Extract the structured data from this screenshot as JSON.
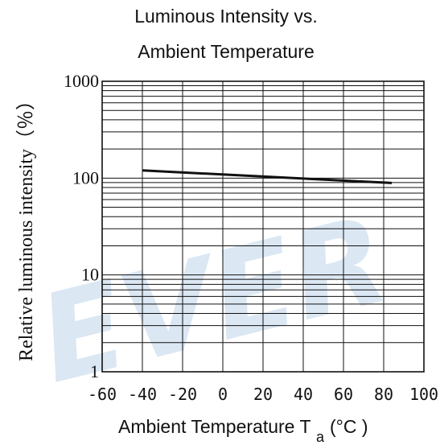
{
  "chart_data": {
    "type": "line",
    "title_lines": [
      "Luminous Intensity vs.",
      "Ambient Temperature"
    ],
    "xlabel": "Ambient Temperature T",
    "xlabel_sub": "a",
    "xlabel_unit": "(°C )",
    "ylabel": "Relative luminous intensity（％）",
    "xlim": [
      -60,
      100
    ],
    "ylim": [
      1,
      1000
    ],
    "y_scale": "log",
    "x_ticks": [
      "-60",
      "-40",
      "-20",
      "0",
      "20",
      "40",
      "60",
      "80",
      "100"
    ],
    "y_ticks": [
      "1000",
      "100",
      "10",
      "1"
    ],
    "grid": true,
    "watermark": "EVER",
    "series": [
      {
        "x": [
          -40,
          84
        ],
        "y": [
          120,
          89
        ]
      }
    ],
    "colors": {
      "line": "#111111",
      "watermark": "#dbe7f3"
    }
  }
}
